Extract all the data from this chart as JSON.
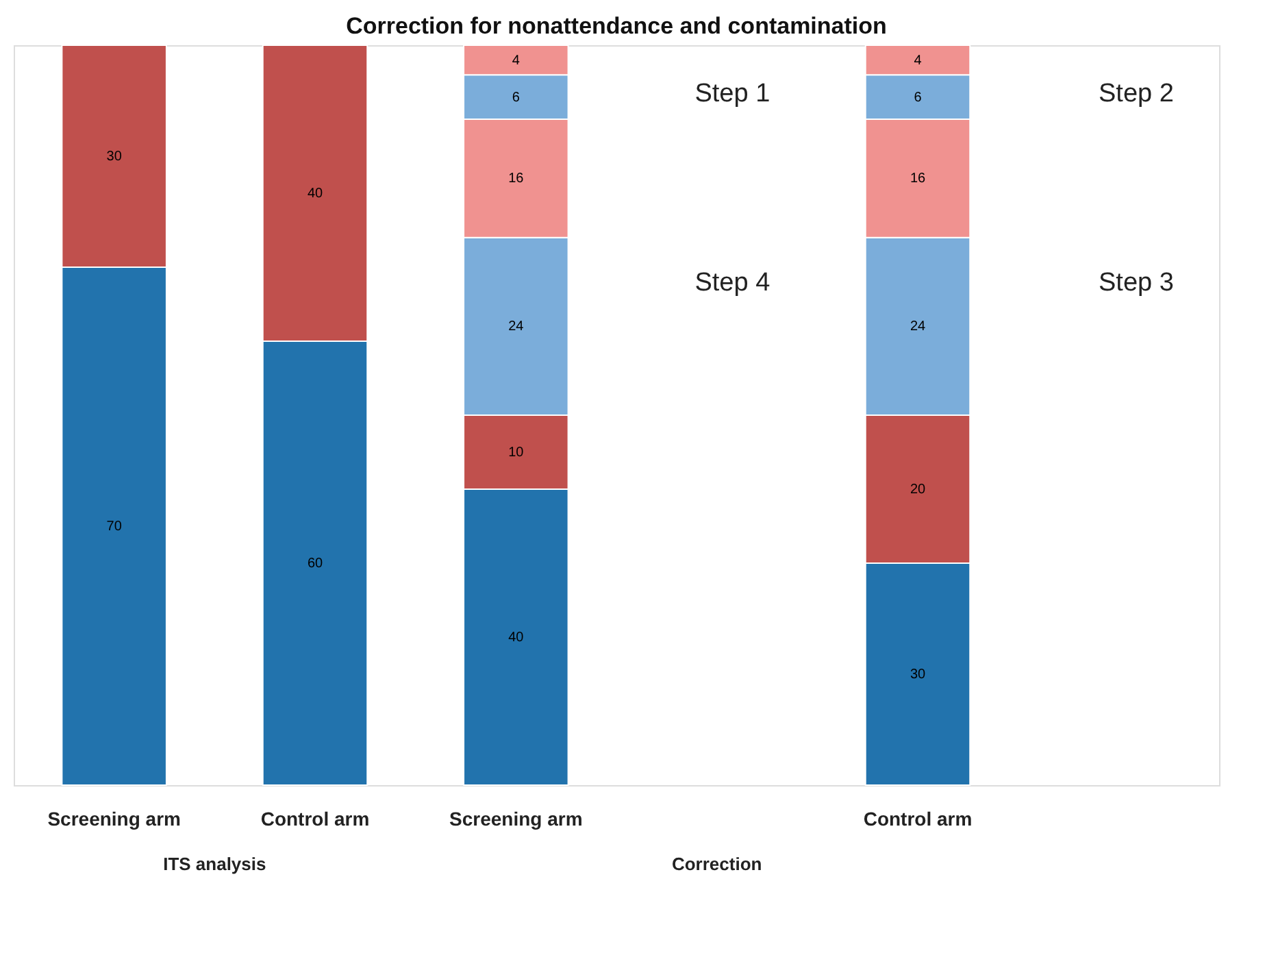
{
  "chart_data": {
    "type": "bar",
    "title": "Correction for nonattendance and contamination",
    "categories": [
      "Screening arm",
      "Control arm",
      "Screening arm",
      null,
      "Control arm",
      null
    ],
    "stacked": true,
    "data_labels": true,
    "ylim": [
      0,
      100
    ],
    "grid": false,
    "tick_labels": "x",
    "series": [
      {
        "color": "#2273ad",
        "values": [
          70,
          60,
          40,
          null,
          30,
          null
        ]
      },
      {
        "color": "#c0504d",
        "values": [
          30,
          40,
          10,
          null,
          20,
          null
        ]
      },
      {
        "color": "#7badda",
        "values": [
          null,
          null,
          24,
          null,
          24,
          null
        ]
      },
      {
        "color": "#f09290",
        "values": [
          null,
          null,
          16,
          null,
          16,
          null
        ]
      },
      {
        "color": "#7badda",
        "values": [
          null,
          null,
          6,
          null,
          6,
          null
        ]
      },
      {
        "color": "#f09290",
        "values": [
          null,
          null,
          4,
          null,
          4,
          null
        ]
      }
    ],
    "annotations": [
      "Step 1",
      "Step 4",
      "Step 2",
      "Step 3",
      "ITS analysis",
      "Correction"
    ]
  }
}
